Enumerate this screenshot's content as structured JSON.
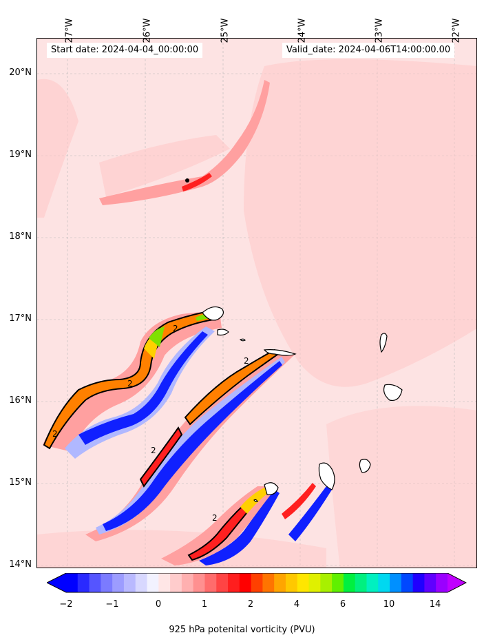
{
  "header": {
    "start_date": "Start date: 2024-04-04_00:00:00",
    "valid_date": "Valid_date: 2024-04-06T14:00:00.00"
  },
  "map": {
    "lon_labels": [
      "27°W",
      "26°W",
      "25°W",
      "24°W",
      "23°W",
      "22°W"
    ],
    "lat_labels": [
      "20°N",
      "19°N",
      "18°N",
      "17°N",
      "16°N",
      "15°N",
      "14°N"
    ],
    "contour_label": "2",
    "colors": {
      "background": "#fde3e3",
      "light_pink": "#ffc8c8",
      "pink": "#ffa0a0",
      "red": "#ff2020",
      "orange": "#ff8000",
      "yellow": "#ffd000",
      "green": "#80e000",
      "blue": "#1020ff",
      "light_blue": "#b0b8ff",
      "land": "#ffffff"
    }
  },
  "colorbar": {
    "title": "925 hPa potenital vorticity (PVU)",
    "tick_labels": [
      "−2",
      "−1",
      "0",
      "1",
      "2",
      "4",
      "6",
      "10",
      "14"
    ],
    "colors": [
      "#0000ff",
      "#2a2aff",
      "#5555ff",
      "#7b7bff",
      "#9c9cff",
      "#b9b9ff",
      "#d8d8ff",
      "#f2f2ff",
      "#ffe6e6",
      "#ffcccc",
      "#ffb0b0",
      "#ff9090",
      "#ff6c6c",
      "#ff4444",
      "#ff1e1e",
      "#ff0000",
      "#ff4000",
      "#ff7400",
      "#ffa500",
      "#ffc800",
      "#ffe600",
      "#e0f000",
      "#a8f000",
      "#60f000",
      "#00f040",
      "#00f080",
      "#00f0c0",
      "#00d8f0",
      "#0090ff",
      "#0048ff",
      "#2000ff",
      "#6000ff",
      "#9a00ff"
    ],
    "under_color": "#0000ff",
    "over_color": "#c000ff"
  }
}
